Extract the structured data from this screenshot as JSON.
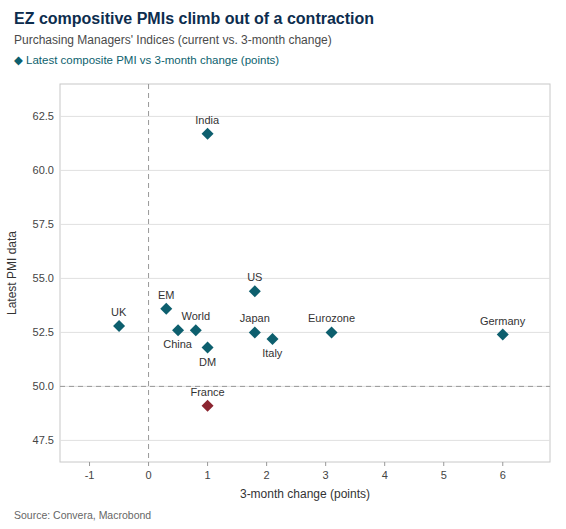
{
  "chart_data": {
    "type": "scatter",
    "title": "EZ compositive PMIs climb out of a contraction",
    "subtitle": "Purchasing Managers' Indices (current vs. 3-month change)",
    "legend_label": "◆ Latest composite PMI vs 3-month change (points)",
    "xlabel": "3-month change (points)",
    "ylabel": "Latest PMI data",
    "source": "Source: Convera, Macrobond",
    "xlim": [
      -1.5,
      6.8
    ],
    "ylim": [
      46.5,
      64.0
    ],
    "xticks": [
      -1,
      0,
      1,
      2,
      3,
      4,
      5,
      6
    ],
    "yticks": [
      47.5,
      {
        "value": 50.0,
        "label": "50.0"
      },
      52.5,
      {
        "value": 55.0,
        "label": "55.0"
      },
      57.5,
      {
        "value": 60.0,
        "label": "60.0"
      },
      62.5
    ],
    "grid": "y",
    "hline": 50.0,
    "vline": 0.0,
    "labels": [
      "UK",
      "EM",
      "China",
      "World",
      "DM",
      "India",
      "US",
      "Japan",
      "Italy",
      "Eurozone",
      "Germany",
      "France"
    ],
    "x": [
      -0.5,
      0.3,
      0.5,
      0.8,
      1.0,
      1.0,
      1.8,
      1.8,
      2.1,
      3.1,
      6.0,
      1.0
    ],
    "values": [
      52.8,
      53.6,
      52.6,
      52.6,
      51.8,
      61.7,
      54.4,
      52.5,
      52.2,
      52.5,
      52.4,
      49.1
    ],
    "colors": [
      "#0d5f6e",
      "#0d5f6e",
      "#0d5f6e",
      "#0d5f6e",
      "#0d5f6e",
      "#0d5f6e",
      "#0d5f6e",
      "#0d5f6e",
      "#0d5f6e",
      "#0d5f6e",
      "#0d5f6e",
      "#8b2530"
    ],
    "marker": "diamond"
  }
}
